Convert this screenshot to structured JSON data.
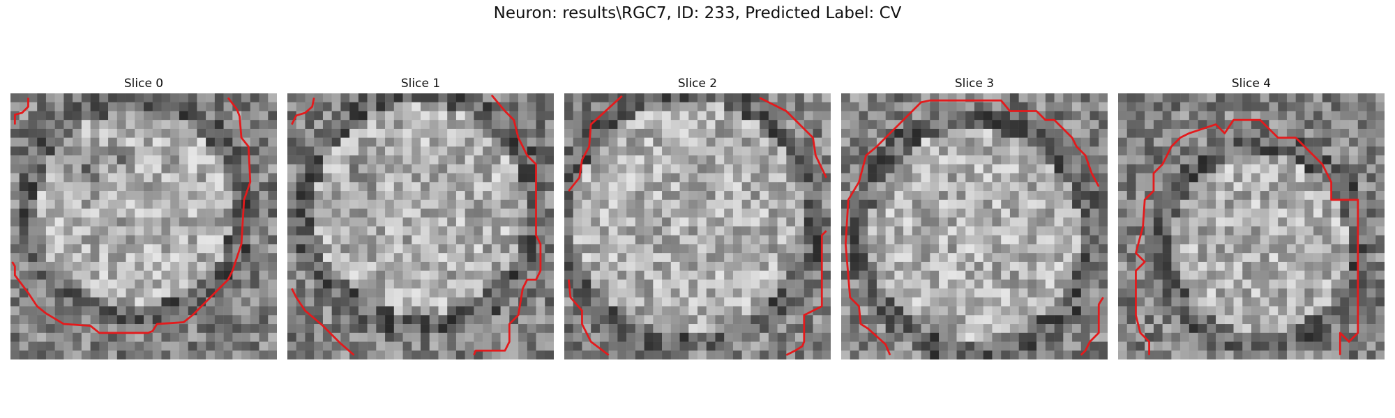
{
  "figure": {
    "title": "Neuron: results\\RGC7, ID: 233, Predicted Label: CV"
  },
  "slices": [
    {
      "title": "Slice 0",
      "ring": "top-open"
    },
    {
      "title": "Slice 1",
      "ring": "top-open"
    },
    {
      "title": "Slice 2",
      "ring": "side-open"
    },
    {
      "title": "Slice 3",
      "ring": "bottom-open"
    },
    {
      "title": "Slice 4",
      "ring": "bottom-open"
    }
  ],
  "colors": {
    "contour": "#e31a1c",
    "background": "#ffffff"
  }
}
